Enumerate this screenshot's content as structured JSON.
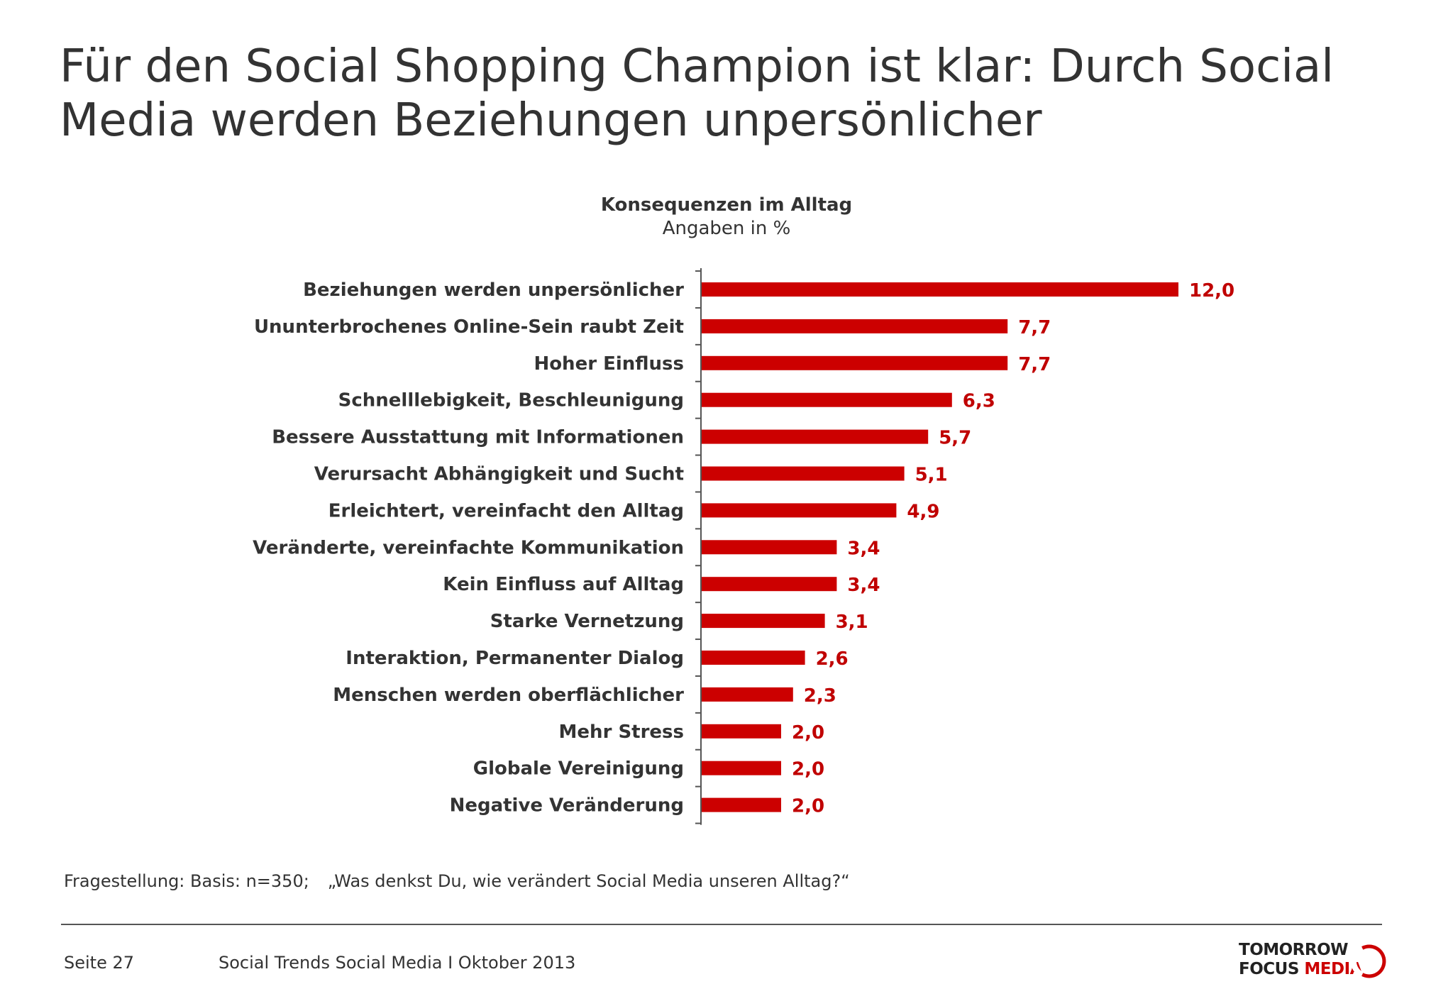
{
  "header": {
    "title": "Für den Social Shopping Champion ist klar: Durch Social Media werden Beziehungen unpersönlicher"
  },
  "chart_data": {
    "type": "bar",
    "orientation": "horizontal",
    "title": "Konsequenzen im Alltag",
    "subtitle": "Angaben in %",
    "categories": [
      "Beziehungen werden unpersönlicher",
      "Ununterbrochenes Online-Sein raubt Zeit",
      "Hoher Einfluss",
      "Schnelllebigkeit, Beschleunigung",
      "Bessere Ausstattung mit Informationen",
      "Verursacht Abhängigkeit und Sucht",
      "Erleichtert, vereinfacht den Alltag",
      "Veränderte, vereinfachte Kommunikation",
      "Kein Einfluss auf Alltag",
      "Starke Vernetzung",
      "Interaktion, Permanenter Dialog",
      "Menschen werden oberflächlicher",
      "Mehr Stress",
      "Globale Vereinigung",
      "Negative Veränderung"
    ],
    "values": [
      12.0,
      7.7,
      7.7,
      6.3,
      5.7,
      5.1,
      4.9,
      3.4,
      3.4,
      3.1,
      2.6,
      2.3,
      2.0,
      2.0,
      2.0
    ],
    "value_labels": [
      "12,0",
      "7,7",
      "7,7",
      "6,3",
      "5,7",
      "5,1",
      "4,9",
      "3,4",
      "3,4",
      "3,1",
      "2,6",
      "2,3",
      "2,0",
      "2,0",
      "2,0"
    ],
    "xlim": [
      0,
      12
    ],
    "grid": false,
    "legend": "none",
    "colors": {
      "bar": "#cc0000",
      "value_label": "#c00000",
      "category_label": "#333333",
      "axis": "#555555"
    }
  },
  "footnote": {
    "basis": "Fragestellung: Basis: n=350;",
    "question": "„Was denkst Du, wie verändert Social Media unseren Alltag?“"
  },
  "footer": {
    "page": "Seite 27",
    "document": "Social Trends Social Media I Oktober 2013",
    "logo_line1": "TOMORROW",
    "logo_line2_a": "FOCUS",
    "logo_line2_b": "MEDIA",
    "logo_icon": "crescent-logo-icon",
    "brand_color": "#cc0000"
  }
}
